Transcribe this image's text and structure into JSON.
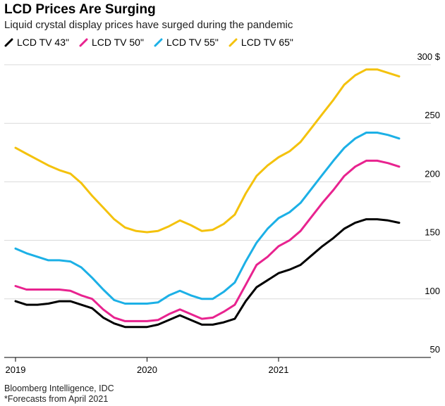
{
  "header": {
    "title": "LCD Prices Are Surging",
    "subtitle": "Liquid crystal display prices have surged during the pandemic"
  },
  "footer": {
    "source": "Bloomberg Intelligence, IDC",
    "note": "*Forecasts from April 2021"
  },
  "chart_data": {
    "type": "line",
    "title": "LCD Prices Are Surging",
    "subtitle": "Liquid crystal display prices have surged during the pandemic",
    "ylabel": "$",
    "ylim": [
      50,
      300
    ],
    "yticks": [
      50,
      100,
      150,
      200,
      250,
      300
    ],
    "ytick_labels": [
      "50",
      "100",
      "150",
      "200",
      "250",
      "300 $"
    ],
    "xlim": [
      2019.0,
      2021.917
    ],
    "xticks": [
      2019,
      2020,
      2021
    ],
    "xtick_labels": [
      "2019",
      "2020",
      "2021"
    ],
    "legend_position": "top-left",
    "x": [
      2019.0,
      2019.083,
      2019.167,
      2019.25,
      2019.333,
      2019.417,
      2019.5,
      2019.583,
      2019.667,
      2019.75,
      2019.833,
      2019.917,
      2020.0,
      2020.083,
      2020.167,
      2020.25,
      2020.333,
      2020.417,
      2020.5,
      2020.583,
      2020.667,
      2020.75,
      2020.833,
      2020.917,
      2021.0,
      2021.083,
      2021.167,
      2021.25,
      2021.333,
      2021.417,
      2021.5,
      2021.583,
      2021.667,
      2021.75,
      2021.833,
      2021.917
    ],
    "series": [
      {
        "name": "LCD TV 43\"",
        "color": "#000000",
        "values": [
          98,
          95,
          95,
          96,
          98,
          98,
          95,
          92,
          84,
          79,
          76,
          76,
          76,
          78,
          82,
          86,
          82,
          78,
          78,
          80,
          83,
          98,
          110,
          116,
          122,
          125,
          129,
          137,
          145,
          152,
          160,
          165,
          168,
          168,
          167,
          165
        ]
      },
      {
        "name": "LCD TV 50\"",
        "color": "#e8238f",
        "values": [
          111,
          108,
          108,
          108,
          108,
          107,
          103,
          100,
          91,
          84,
          81,
          81,
          81,
          82,
          87,
          91,
          87,
          83,
          84,
          89,
          95,
          112,
          129,
          136,
          145,
          150,
          158,
          170,
          182,
          193,
          205,
          213,
          218,
          218,
          216,
          213
        ]
      },
      {
        "name": "LCD TV 55\"",
        "color": "#1cb0e6",
        "values": [
          143,
          139,
          136,
          133,
          133,
          132,
          127,
          118,
          108,
          99,
          96,
          96,
          96,
          97,
          103,
          107,
          103,
          100,
          100,
          106,
          114,
          132,
          148,
          160,
          169,
          174,
          182,
          194,
          206,
          218,
          229,
          237,
          242,
          242,
          240,
          237
        ]
      },
      {
        "name": "LCD TV 65\"",
        "color": "#f4c20d",
        "values": [
          229,
          224,
          219,
          214,
          210,
          207,
          199,
          188,
          178,
          168,
          161,
          158,
          157,
          158,
          162,
          167,
          163,
          158,
          159,
          164,
          172,
          190,
          205,
          214,
          221,
          226,
          234,
          246,
          258,
          270,
          283,
          291,
          296,
          296,
          293,
          290
        ]
      }
    ]
  }
}
